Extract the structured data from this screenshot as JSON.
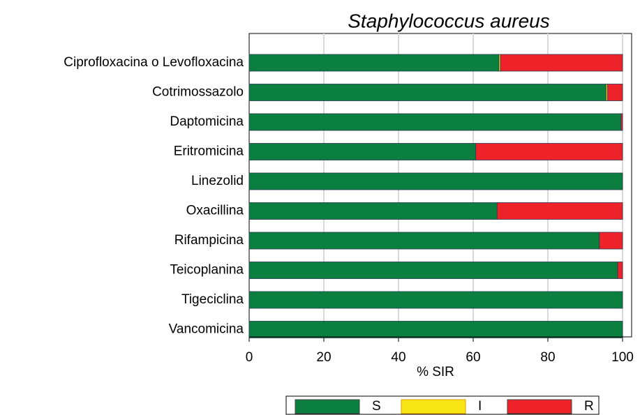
{
  "chart_data": {
    "type": "bar",
    "orientation": "horizontal",
    "stacked": true,
    "title": "Staphylococcus aureus",
    "xlabel": "% SIR",
    "categories": [
      "Ciprofloxacina o Levofloxacina",
      "Cotrimossazolo",
      "Daptomicina",
      "Eritromicina",
      "Linezolid",
      "Oxacillina",
      "Rifampicina",
      "Teicoplanina",
      "Tigeciclina",
      "Vancomicina"
    ],
    "series": [
      {
        "name": "S",
        "color": "#0a7f3f",
        "values": [
          66.9,
          95.6,
          99.6,
          60.7,
          100,
          66.4,
          93.8,
          98.7,
          100,
          100
        ]
      },
      {
        "name": "I",
        "color": "#f7e614",
        "values": [
          0.4,
          0.4,
          0,
          0,
          0,
          0,
          0,
          0,
          0,
          0
        ]
      },
      {
        "name": "R",
        "color": "#ee2229",
        "values": [
          32.7,
          4,
          0.4,
          39.3,
          0,
          33.6,
          6.2,
          1.3,
          0,
          0
        ]
      }
    ],
    "xlim": [
      0,
      100
    ],
    "xticks": [
      0,
      20,
      40,
      60,
      80,
      100
    ],
    "grid": true
  }
}
